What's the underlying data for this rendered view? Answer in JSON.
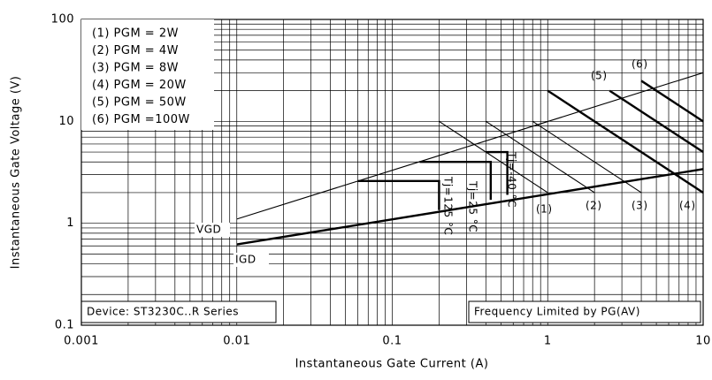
{
  "chart_data": {
    "type": "line",
    "xlabel": "Instantaneous Gate Current (A)",
    "ylabel": "Instantaneous Gate Voltage (V)",
    "log_x": true,
    "log_y": true,
    "grid": true,
    "xlim": [
      0.001,
      10
    ],
    "ylim": [
      0.1,
      100
    ],
    "xticks": [
      0.001,
      0.01,
      0.1,
      1,
      10
    ],
    "yticks": [
      0.1,
      1,
      10,
      100
    ],
    "legend": [
      "(1) PGM = 2W",
      "(2) PGM = 4W",
      "(3) PGM = 8W",
      "(4) PGM = 20W",
      "(5) PGM = 50W",
      "(6) PGM =100W"
    ],
    "annotations": [
      "VGD",
      "IGD",
      "Tj=25 °C",
      "Tj=125 °C",
      "Tj=-40 °C",
      "Device: ST3230C..R Series",
      "Frequency Limited by PG(AV)",
      "(1)",
      "(2)",
      "(3)",
      "(4)",
      "(5)",
      "(6)"
    ],
    "color": "#000000",
    "series": [
      {
        "x": [
          0.01,
          10
        ],
        "values": [
          1.1,
          30
        ],
        "weight": "thin"
      },
      {
        "x": [
          0.01,
          10
        ],
        "values": [
          0.62,
          3.4
        ],
        "weight": "thick"
      },
      {
        "x": [
          0.06,
          0.2,
          0.2
        ],
        "values": [
          2.6,
          2.6,
          1.35
        ],
        "weight": "thick"
      },
      {
        "x": [
          0.15,
          0.43,
          0.43
        ],
        "values": [
          4,
          4,
          1.7
        ],
        "weight": "thick"
      },
      {
        "x": [
          0.4,
          0.55,
          0.55
        ],
        "values": [
          5,
          5,
          1.9
        ],
        "weight": "thick"
      },
      {
        "x": [
          0.2,
          1
        ],
        "values": [
          10,
          2
        ],
        "weight": "thin"
      },
      {
        "x": [
          0.4,
          2
        ],
        "values": [
          10,
          2
        ],
        "weight": "thin"
      },
      {
        "x": [
          0.8,
          4
        ],
        "values": [
          10,
          2
        ],
        "weight": "thin"
      },
      {
        "x": [
          1,
          10
        ],
        "values": [
          20,
          2
        ],
        "weight": "thick"
      },
      {
        "x": [
          2.5,
          10
        ],
        "values": [
          20,
          5
        ],
        "weight": "thick"
      },
      {
        "x": [
          4,
          10
        ],
        "values": [
          25,
          10
        ],
        "weight": "thick"
      }
    ]
  }
}
